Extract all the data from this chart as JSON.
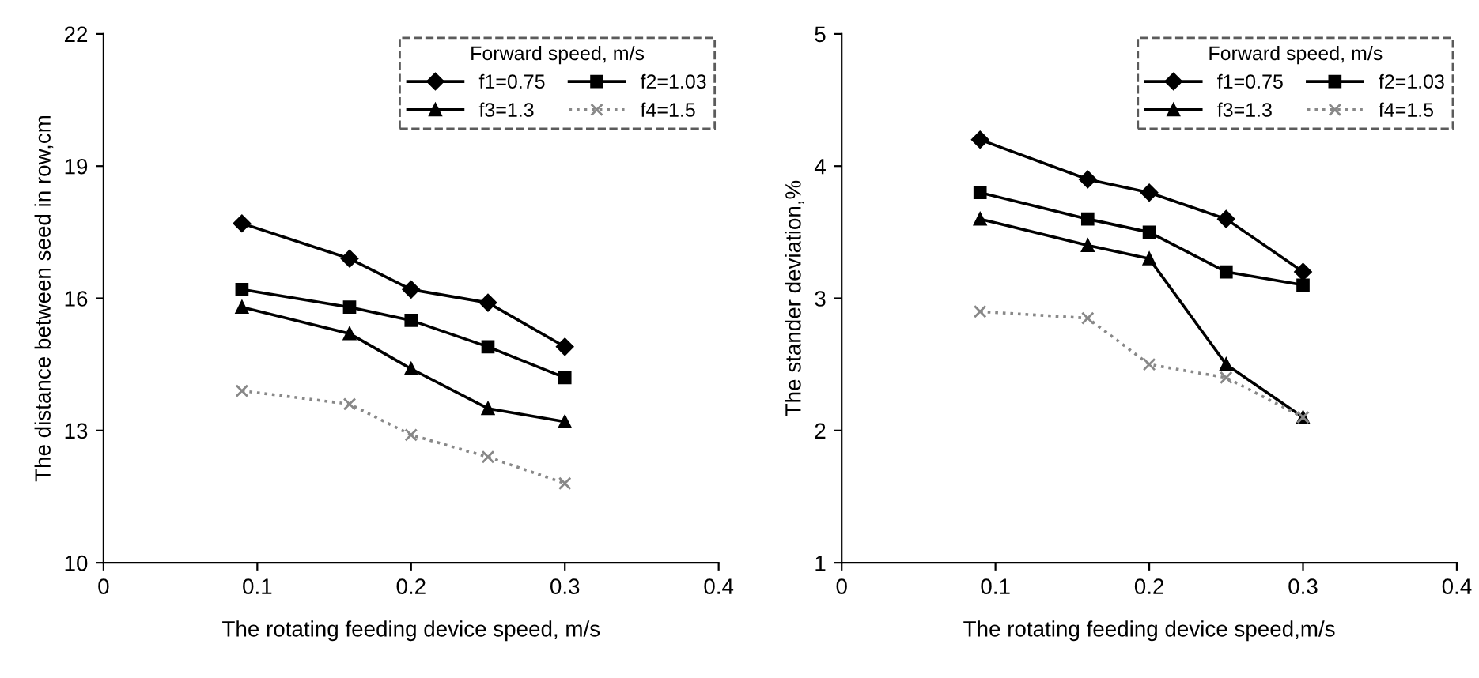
{
  "chart_data": [
    {
      "type": "line",
      "xlabel": "The rotating feeding device speed, m/s",
      "ylabel": "The distance between seed in row,cm",
      "legend_title": "Forward speed, m/s",
      "legend": "top right",
      "x": [
        0.09,
        0.16,
        0.2,
        0.25,
        0.3
      ],
      "xlim": [
        0,
        0.4
      ],
      "xticks": [
        0,
        0.1,
        0.2,
        0.3,
        0.4
      ],
      "ylim": [
        10,
        22
      ],
      "yticks": [
        10,
        13,
        16,
        19,
        22
      ],
      "grid": false,
      "series": [
        {
          "name": "f1=0.75",
          "color": "#000000",
          "marker": "diamond",
          "line_style": "solid",
          "values": [
            17.7,
            16.9,
            16.2,
            15.9,
            14.9
          ]
        },
        {
          "name": "f2=1.03",
          "color": "#000000",
          "marker": "square",
          "line_style": "solid",
          "values": [
            16.2,
            15.8,
            15.5,
            14.9,
            14.2
          ]
        },
        {
          "name": "f3=1.3",
          "color": "#000000",
          "marker": "triangle",
          "line_style": "solid",
          "values": [
            15.8,
            15.2,
            14.4,
            13.5,
            13.2
          ]
        },
        {
          "name": "f4=1.5",
          "color": "#888888",
          "marker": "cross",
          "line_style": "dotted",
          "values": [
            13.9,
            13.6,
            12.9,
            12.4,
            11.8
          ]
        }
      ]
    },
    {
      "type": "line",
      "xlabel": "The rotating feeding device speed,m/s",
      "ylabel": "The stander deviation,%",
      "legend_title": "Forward speed, m/s",
      "legend": "top right",
      "x": [
        0.09,
        0.16,
        0.2,
        0.25,
        0.3
      ],
      "xlim": [
        0,
        0.4
      ],
      "xticks": [
        0,
        0.1,
        0.2,
        0.3,
        0.4
      ],
      "ylim": [
        1,
        5
      ],
      "yticks": [
        1,
        2,
        3,
        4,
        5
      ],
      "grid": false,
      "series": [
        {
          "name": "f1=0.75",
          "color": "#000000",
          "marker": "diamond",
          "line_style": "solid",
          "values": [
            4.2,
            3.9,
            3.8,
            3.6,
            3.2
          ]
        },
        {
          "name": "f2=1.03",
          "color": "#000000",
          "marker": "square",
          "line_style": "solid",
          "values": [
            3.8,
            3.6,
            3.5,
            3.2,
            3.1
          ]
        },
        {
          "name": "f3=1.3",
          "color": "#000000",
          "marker": "triangle",
          "line_style": "solid",
          "values": [
            3.6,
            3.4,
            3.3,
            2.5,
            2.1
          ]
        },
        {
          "name": "f4=1.5",
          "color": "#888888",
          "marker": "cross",
          "line_style": "dotted",
          "values": [
            2.9,
            2.85,
            2.5,
            2.4,
            2.1
          ]
        }
      ]
    }
  ]
}
